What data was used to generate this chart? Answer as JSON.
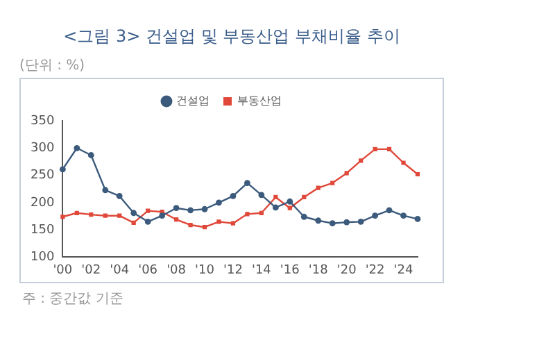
{
  "chart_data": {
    "type": "line",
    "title": "<그림 3> 건설업 및 부동산업 부채비율 추이",
    "ylabel": "(단위 : %)",
    "annotations": [
      "주 : 중간값 기준"
    ],
    "categories": [
      "'00",
      null,
      "'02",
      null,
      "'04",
      null,
      "'06",
      null,
      "'08",
      null,
      "'10",
      null,
      "'12",
      null,
      "'14",
      null,
      "'16",
      null,
      "'18",
      null,
      "'20",
      null,
      "'22",
      null,
      "'24",
      null
    ],
    "series": [
      {
        "name": "건설업",
        "color": "#3b5a7c",
        "marker": "circle",
        "values": [
          261,
          300,
          287,
          223,
          212,
          181,
          165,
          176,
          190,
          186,
          188,
          200,
          212,
          236,
          214,
          191,
          202,
          174,
          167,
          162,
          164,
          165,
          176,
          186,
          176,
          170
        ]
      },
      {
        "name": "부동산업",
        "color": "#e0483a",
        "marker": "square",
        "values": [
          174,
          181,
          178,
          176,
          176,
          163,
          185,
          183,
          169,
          159,
          155,
          165,
          162,
          179,
          181,
          210,
          190,
          210,
          227,
          236,
          254,
          277,
          298,
          298,
          273,
          252
        ]
      }
    ],
    "ylim": [
      100,
      350
    ],
    "yticks": [
      100,
      150,
      200,
      250,
      300,
      350
    ],
    "grid": false,
    "legend": "top"
  }
}
